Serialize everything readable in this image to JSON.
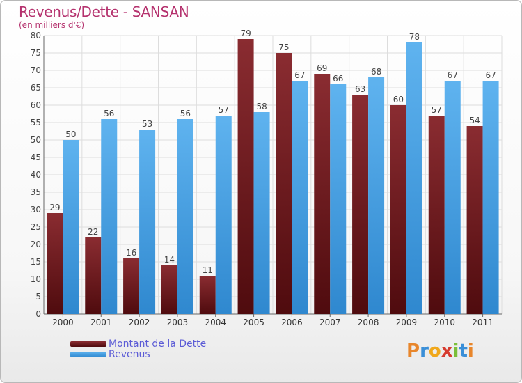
{
  "header": {
    "title": "Revenus/Dette - SANSAN",
    "subtitle": "(en milliers d'€)"
  },
  "chart_data": {
    "type": "bar",
    "categories": [
      "2000",
      "2001",
      "2002",
      "2003",
      "2004",
      "2005",
      "2006",
      "2007",
      "2008",
      "2009",
      "2010",
      "2011"
    ],
    "series": [
      {
        "name": "Montant de la Dette",
        "color": "#7a1f25",
        "values": [
          29,
          22,
          16,
          14,
          11,
          79,
          75,
          69,
          63,
          60,
          57,
          54
        ]
      },
      {
        "name": "Revenus",
        "color": "#4ea6e6",
        "values": [
          50,
          56,
          53,
          56,
          57,
          58,
          67,
          66,
          68,
          78,
          67,
          67
        ]
      }
    ],
    "ylim": [
      0,
      80
    ],
    "ytick_step": 5,
    "yticks": [
      "0",
      "5",
      "10",
      "15",
      "20",
      "25",
      "30",
      "35",
      "40",
      "45",
      "50",
      "55",
      "60",
      "65",
      "70",
      "75",
      "80"
    ],
    "grid": true,
    "legend_position": "bottom-left"
  },
  "logo": {
    "letters": [
      "P",
      "r",
      "o",
      "x",
      "i",
      "t",
      "i"
    ],
    "colors": [
      "#e8862b",
      "#3a8fd8",
      "#f0a81c",
      "#d63b2f",
      "#7bbf3a",
      "#3a8fd8",
      "#e8862b"
    ]
  }
}
